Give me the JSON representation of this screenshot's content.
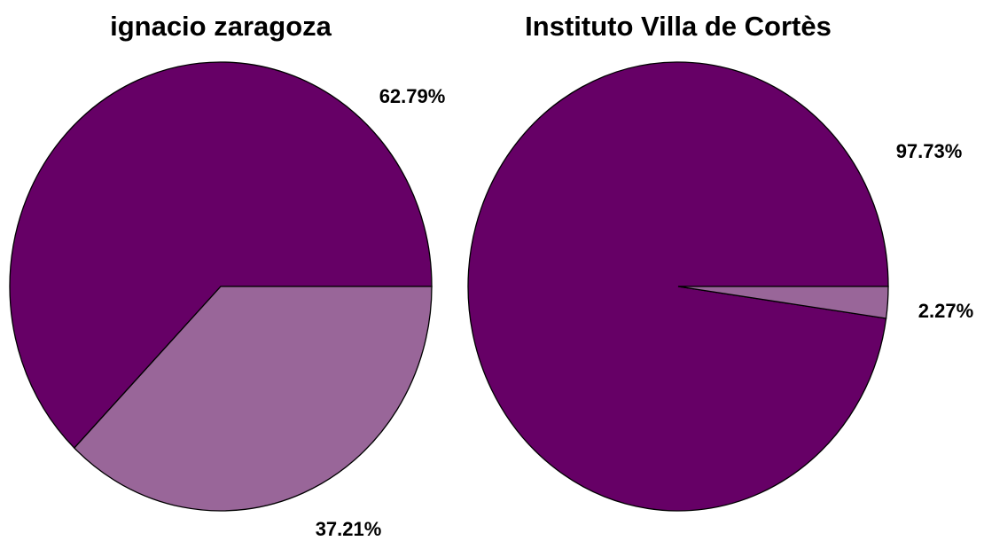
{
  "chart_data": [
    {
      "type": "pie",
      "title": "ignacio zaragoza",
      "values": [
        62.79,
        37.21
      ],
      "value_labels": [
        "62.79%",
        "37.21%"
      ],
      "colors": [
        "#660066",
        "#996699"
      ]
    },
    {
      "type": "pie",
      "title": "Instituto Villa de Cortès",
      "values": [
        97.73,
        2.27
      ],
      "value_labels": [
        "97.73%",
        "2.27%"
      ],
      "colors": [
        "#660066",
        "#996699"
      ]
    }
  ]
}
